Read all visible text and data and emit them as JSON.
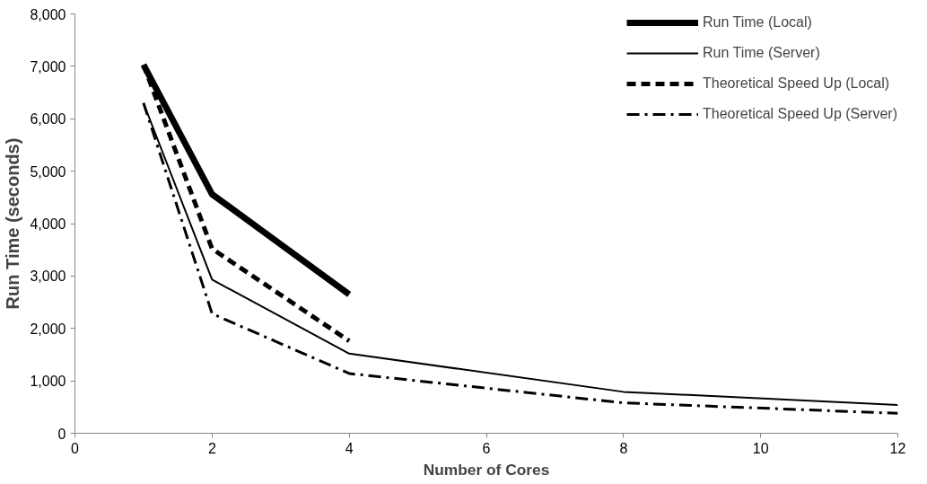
{
  "chart_data": {
    "type": "line",
    "xlabel": "Number of Cores",
    "ylabel": "Run Time (seconds)",
    "xlim": [
      0,
      12
    ],
    "xticks": [
      0,
      2,
      4,
      6,
      8,
      10,
      12
    ],
    "ylim": [
      0,
      8000
    ],
    "yticks": [
      {
        "value": 0,
        "label": "0"
      },
      {
        "value": 1000,
        "label": "1,000"
      },
      {
        "value": 2000,
        "label": "2,000"
      },
      {
        "value": 3000,
        "label": "3,000"
      },
      {
        "value": 4000,
        "label": "4,000"
      },
      {
        "value": 5000,
        "label": "5,000"
      },
      {
        "value": 6000,
        "label": "6,000"
      },
      {
        "value": 7000,
        "label": "7,000"
      },
      {
        "value": 8000,
        "label": "8,000"
      }
    ],
    "grid": false,
    "legend": "top right",
    "series": [
      {
        "name": "Run Time (Local)",
        "color": "#000000",
        "x": [
          1,
          2,
          4
        ],
        "values": [
          7030,
          4560,
          2650
        ],
        "line_style": "solid"
      },
      {
        "name": "Run Time (Server)",
        "color": "#000000",
        "x": [
          1,
          2,
          4,
          8,
          12
        ],
        "values": [
          6300,
          2930,
          1520,
          790,
          540
        ],
        "line_style": "solid"
      },
      {
        "name": "Theoretical Speed Up (Local)",
        "color": "#000000",
        "x": [
          1,
          2,
          4
        ],
        "values": [
          7030,
          3520,
          1760
        ],
        "line_style": "dashed"
      },
      {
        "name": "Theoretical Speed Up (Server)",
        "color": "#000000",
        "x": [
          1,
          2,
          4,
          8,
          12
        ],
        "values": [
          6300,
          2280,
          1140,
          580,
          380
        ],
        "line_style": "dashdot"
      }
    ]
  }
}
